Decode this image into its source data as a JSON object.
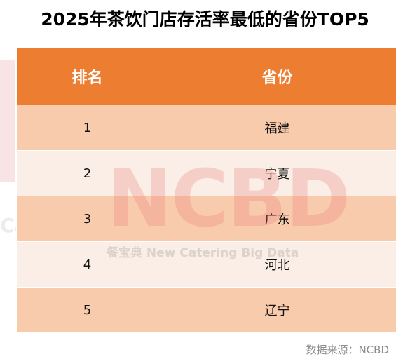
{
  "title": "2025年茶饮门店存活率最低的省份TOP5",
  "table": {
    "headers": [
      "排名",
      "省份"
    ],
    "rows": [
      {
        "rank": "1",
        "province": "福建"
      },
      {
        "rank": "2",
        "province": "宁夏"
      },
      {
        "rank": "3",
        "province": "广东"
      },
      {
        "rank": "4",
        "province": "河北"
      },
      {
        "rank": "5",
        "province": "辽宁"
      }
    ],
    "header_color": "#ed7d31",
    "row_colors": [
      "#f8cbad",
      "#fbeee6"
    ]
  },
  "watermark": {
    "logo_text": "NCBD",
    "tagline": "餐宝典 New Catering Big Data"
  },
  "source": "数据来源：NCBD"
}
